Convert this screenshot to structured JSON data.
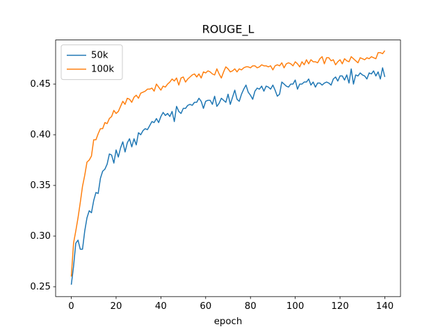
{
  "chart_data": {
    "type": "line",
    "title": "ROUGE_L",
    "x_label": "epoch",
    "x": [
      0,
      1,
      2,
      3,
      4,
      5,
      6,
      7,
      8,
      9,
      10,
      11,
      12,
      13,
      14,
      15,
      16,
      17,
      18,
      19,
      20,
      21,
      22,
      23,
      24,
      25,
      26,
      27,
      28,
      29,
      30,
      31,
      32,
      33,
      34,
      35,
      36,
      37,
      38,
      39,
      40,
      41,
      42,
      43,
      44,
      45,
      46,
      47,
      48,
      49,
      50,
      51,
      52,
      53,
      54,
      55,
      56,
      57,
      58,
      59,
      60,
      61,
      62,
      63,
      64,
      65,
      66,
      67,
      68,
      69,
      70,
      71,
      72,
      73,
      74,
      75,
      76,
      77,
      78,
      79,
      80,
      81,
      82,
      83,
      84,
      85,
      86,
      87,
      88,
      89,
      90,
      91,
      92,
      93,
      94,
      95,
      96,
      97,
      98,
      99,
      100,
      101,
      102,
      103,
      104,
      105,
      106,
      107,
      108,
      109,
      110,
      111,
      112,
      113,
      114,
      115,
      116,
      117,
      118,
      119,
      120,
      121,
      122,
      123,
      124,
      125,
      126,
      127,
      128,
      129,
      130,
      131,
      132,
      133,
      134,
      135,
      136,
      137,
      138,
      139,
      140
    ],
    "series": [
      {
        "name": "50k",
        "color": "#1f77b4",
        "values": [
          0.252,
          0.27,
          0.293,
          0.296,
          0.287,
          0.287,
          0.305,
          0.318,
          0.325,
          0.323,
          0.335,
          0.343,
          0.342,
          0.357,
          0.364,
          0.366,
          0.371,
          0.381,
          0.38,
          0.372,
          0.385,
          0.378,
          0.387,
          0.393,
          0.383,
          0.392,
          0.396,
          0.388,
          0.396,
          0.39,
          0.402,
          0.4,
          0.404,
          0.406,
          0.405,
          0.409,
          0.413,
          0.412,
          0.416,
          0.412,
          0.418,
          0.422,
          0.419,
          0.421,
          0.418,
          0.423,
          0.413,
          0.428,
          0.423,
          0.421,
          0.426,
          0.426,
          0.429,
          0.43,
          0.429,
          0.432,
          0.432,
          0.436,
          0.433,
          0.426,
          0.433,
          0.434,
          0.434,
          0.43,
          0.438,
          0.428,
          0.431,
          0.436,
          0.434,
          0.432,
          0.44,
          0.43,
          0.437,
          0.444,
          0.435,
          0.433,
          0.44,
          0.445,
          0.449,
          0.442,
          0.439,
          0.435,
          0.443,
          0.446,
          0.445,
          0.448,
          0.443,
          0.448,
          0.447,
          0.445,
          0.449,
          0.444,
          0.438,
          0.44,
          0.452,
          0.45,
          0.448,
          0.447,
          0.45,
          0.45,
          0.454,
          0.445,
          0.45,
          0.45,
          0.452,
          0.452,
          0.455,
          0.449,
          0.452,
          0.447,
          0.451,
          0.451,
          0.449,
          0.451,
          0.452,
          0.451,
          0.449,
          0.455,
          0.457,
          0.453,
          0.458,
          0.458,
          0.454,
          0.459,
          0.451,
          0.465,
          0.45,
          0.459,
          0.458,
          0.461,
          0.459,
          0.458,
          0.455,
          0.461,
          0.46,
          0.463,
          0.458,
          0.462,
          0.455,
          0.466,
          0.457
        ]
      },
      {
        "name": "100k",
        "color": "#ff7f0e",
        "values": [
          0.26,
          0.293,
          0.305,
          0.318,
          0.333,
          0.349,
          0.36,
          0.373,
          0.375,
          0.379,
          0.395,
          0.395,
          0.401,
          0.406,
          0.406,
          0.412,
          0.411,
          0.416,
          0.418,
          0.424,
          0.421,
          0.423,
          0.428,
          0.433,
          0.43,
          0.436,
          0.435,
          0.432,
          0.437,
          0.439,
          0.436,
          0.441,
          0.442,
          0.443,
          0.445,
          0.445,
          0.446,
          0.443,
          0.45,
          0.447,
          0.444,
          0.448,
          0.447,
          0.45,
          0.452,
          0.455,
          0.453,
          0.456,
          0.449,
          0.456,
          0.457,
          0.452,
          0.455,
          0.457,
          0.459,
          0.46,
          0.457,
          0.46,
          0.456,
          0.462,
          0.461,
          0.463,
          0.462,
          0.46,
          0.459,
          0.465,
          0.46,
          0.456,
          0.462,
          0.467,
          0.465,
          0.462,
          0.463,
          0.465,
          0.462,
          0.465,
          0.464,
          0.466,
          0.467,
          0.467,
          0.466,
          0.468,
          0.468,
          0.466,
          0.467,
          0.469,
          0.468,
          0.468,
          0.467,
          0.468,
          0.464,
          0.468,
          0.469,
          0.468,
          0.471,
          0.466,
          0.47,
          0.471,
          0.47,
          0.468,
          0.472,
          0.47,
          0.467,
          0.472,
          0.469,
          0.474,
          0.47,
          0.474,
          0.472,
          0.472,
          0.471,
          0.475,
          0.477,
          0.47,
          0.476,
          0.476,
          0.473,
          0.474,
          0.469,
          0.472,
          0.474,
          0.47,
          0.475,
          0.473,
          0.472,
          0.477,
          0.475,
          0.473,
          0.471,
          0.476,
          0.475,
          0.474,
          0.476,
          0.475,
          0.477,
          0.476,
          0.475,
          0.481,
          0.481,
          0.48,
          0.483
        ]
      }
    ],
    "xlim": [
      -7,
      147
    ],
    "ylim": [
      0.2403,
      0.4935
    ],
    "xticks": [
      0,
      20,
      40,
      60,
      80,
      100,
      120,
      140
    ],
    "yticks": [
      0.25,
      {
        "value": 0.3,
        "label": "0.30"
      },
      0.35,
      {
        "value": 0.4,
        "label": "0.40"
      },
      0.45
    ],
    "legend": "upper left",
    "grid": false
  }
}
